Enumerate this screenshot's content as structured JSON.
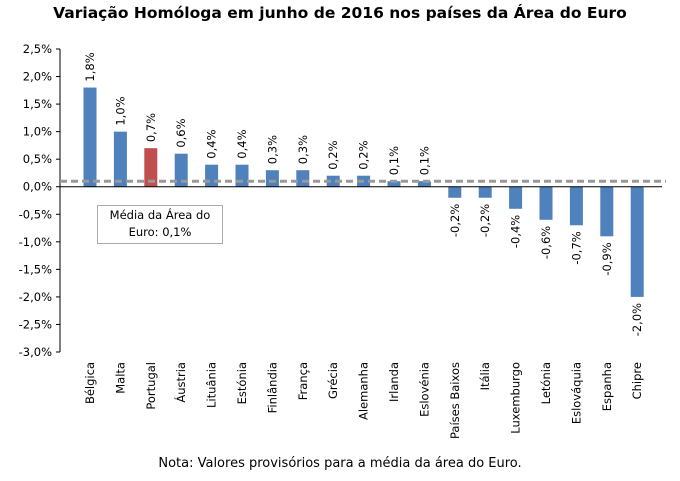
{
  "chart_data": {
    "type": "bar",
    "title": "Variação Homóloga em junho de 2016 nos países da Área do Euro",
    "xlabel": "",
    "ylabel": "",
    "ylim": [
      -3.0,
      2.5
    ],
    "yticks": [
      2.5,
      2.0,
      1.5,
      1.0,
      0.5,
      0.0,
      -0.5,
      -1.0,
      -1.5,
      -2.0,
      -2.5,
      -3.0
    ],
    "ytick_labels": [
      "2,5%",
      "2,0%",
      "1,5%",
      "1,0%",
      "0,5%",
      "0,0%",
      "-0,5%",
      "-1,0%",
      "-1,5%",
      "-2,0%",
      "-2,5%",
      "-3,0%"
    ],
    "categories": [
      "Bélgica",
      "Malta",
      "Portugal",
      "Áustria",
      "Lituânia",
      "Estónia",
      "Finlândia",
      "França",
      "Grécia",
      "Alemanha",
      "Irlanda",
      "Eslovénia",
      "Países Baixos",
      "Itália",
      "Luxemburgo",
      "Letónia",
      "Eslováquia",
      "Espanha",
      "Chipre"
    ],
    "values": [
      1.8,
      1.0,
      0.7,
      0.6,
      0.4,
      0.4,
      0.3,
      0.3,
      0.2,
      0.2,
      0.1,
      0.1,
      -0.2,
      -0.2,
      -0.4,
      -0.6,
      -0.7,
      -0.9,
      -2.0
    ],
    "data_labels": [
      "1,8%",
      "1,0%",
      "0,7%",
      "0,6%",
      "0,4%",
      "0,4%",
      "0,3%",
      "0,3%",
      "0,2%",
      "0,2%",
      "0,1%",
      "0,1%",
      "-0,2%",
      "-0,2%",
      "-0,4%",
      "-0,6%",
      "-0,7%",
      "-0,9%",
      "-2,0%"
    ],
    "highlight": "Portugal",
    "reference_line": {
      "value": 0.1,
      "label_line1": "Média da Área do",
      "label_line2": "Euro: 0,1%"
    },
    "colors": {
      "bar": "#4F81BD",
      "highlight": "#C0504D",
      "reference": "#999999"
    },
    "grid": false,
    "note": "Nota: Valores provisórios para a média da área do Euro."
  }
}
